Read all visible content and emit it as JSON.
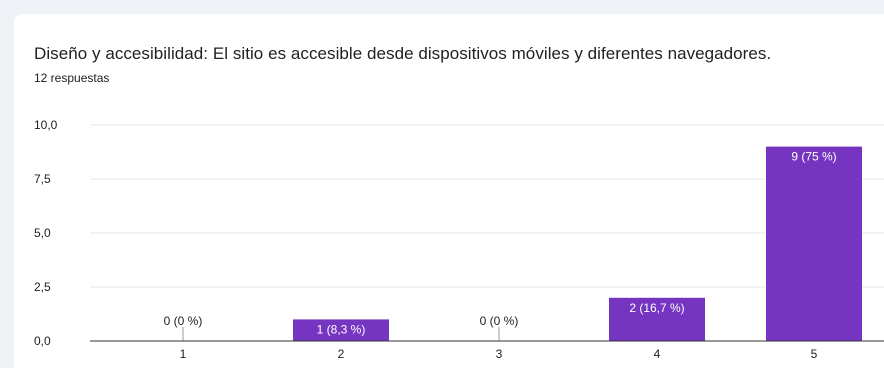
{
  "title": "Diseño y accesibilidad: El sitio es accesible desde dispositivos móviles y diferentes navegadores.",
  "subtitle": "12 respuestas",
  "colors": {
    "bar": "#7535c0",
    "grid": "#e8e8e8",
    "axis": "#333333",
    "label_inside": "#ffffff",
    "label_outside": "#202124"
  },
  "chart_data": {
    "type": "bar",
    "categories": [
      "1",
      "2",
      "3",
      "4",
      "5"
    ],
    "values": [
      0,
      1,
      0,
      2,
      9
    ],
    "data_labels": [
      "0 (0 %)",
      "1 (8,3 %)",
      "0 (0 %)",
      "2 (16,7 %)",
      "9 (75 %)"
    ],
    "y_ticks": [
      "0,0",
      "2,5",
      "5,0",
      "7,5",
      "10,0"
    ],
    "y_tick_values": [
      0,
      2.5,
      5,
      7.5,
      10
    ],
    "ylim": [
      0,
      10
    ],
    "grid": true,
    "legend": "none"
  }
}
